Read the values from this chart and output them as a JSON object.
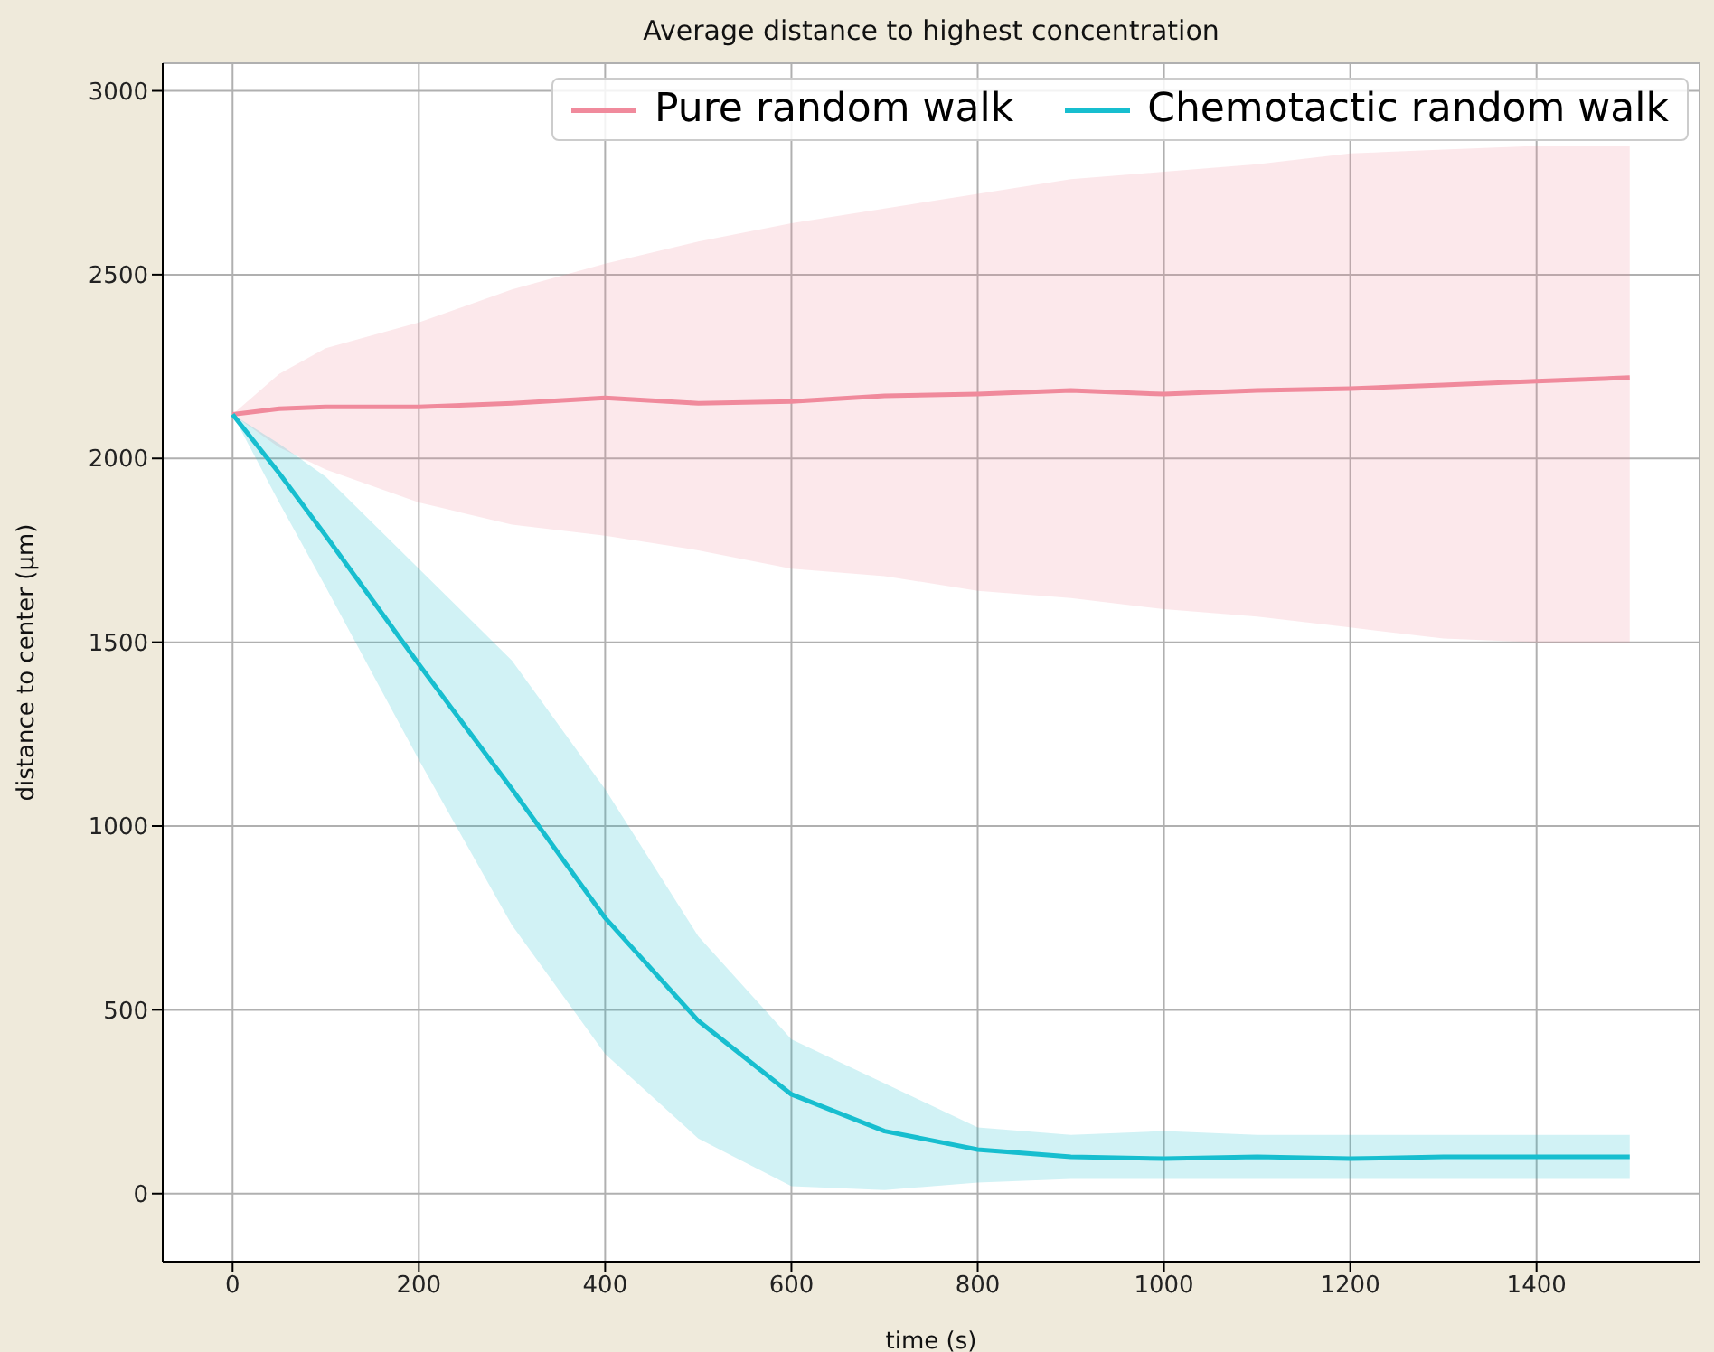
{
  "chart_data": {
    "type": "line",
    "title": "Average distance to highest concentration",
    "xlabel": "time (s)",
    "ylabel": "distance to center (µm)",
    "x": [
      0,
      50,
      100,
      200,
      300,
      400,
      500,
      600,
      700,
      800,
      900,
      1000,
      1100,
      1200,
      1300,
      1400,
      1500
    ],
    "series": [
      {
        "name": "Pure random walk",
        "color": "#f08a9c",
        "values": [
          2120,
          2135,
          2140,
          2140,
          2150,
          2165,
          2150,
          2155,
          2170,
          2175,
          2185,
          2175,
          2185,
          2190,
          2200,
          2210,
          2220
        ],
        "lower": [
          2120,
          2030,
          1970,
          1880,
          1820,
          1790,
          1750,
          1700,
          1680,
          1640,
          1620,
          1590,
          1570,
          1540,
          1510,
          1500,
          1500
        ],
        "upper": [
          2120,
          2230,
          2300,
          2370,
          2460,
          2530,
          2590,
          2640,
          2680,
          2720,
          2760,
          2780,
          2800,
          2830,
          2840,
          2850,
          2850
        ]
      },
      {
        "name": "Chemotactic random walk",
        "color": "#17becf",
        "values": [
          2120,
          1960,
          1790,
          1440,
          1100,
          750,
          470,
          270,
          170,
          120,
          100,
          95,
          100,
          95,
          100,
          100,
          100
        ],
        "lower": [
          2120,
          1880,
          1650,
          1180,
          730,
          380,
          150,
          20,
          10,
          30,
          40,
          40,
          40,
          40,
          40,
          40,
          40
        ],
        "upper": [
          2120,
          2040,
          1950,
          1700,
          1450,
          1100,
          700,
          420,
          300,
          180,
          160,
          170,
          160,
          160,
          160,
          160,
          160
        ]
      }
    ],
    "xlim": [
      -75,
      1575
    ],
    "xticks": [
      0,
      200,
      400,
      600,
      800,
      1000,
      1200,
      1400
    ],
    "ylim": [
      -185,
      3075
    ],
    "yticks": [
      0,
      500,
      1000,
      1500,
      2000,
      2500,
      3000
    ],
    "grid": true,
    "legend": "top right",
    "line_style": "solid",
    "marker": "none"
  }
}
